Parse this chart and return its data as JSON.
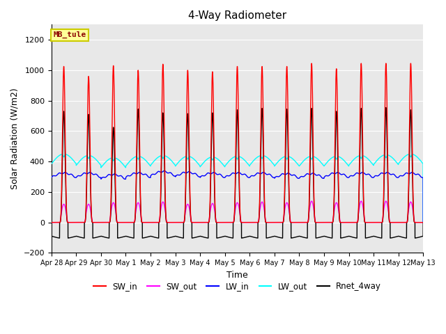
{
  "title": "4-Way Radiometer",
  "xlabel": "Time",
  "ylabel": "Solar Radiation (W/m2)",
  "ylim": [
    -200,
    1300
  ],
  "yticks": [
    -200,
    0,
    200,
    400,
    600,
    800,
    1000,
    1200
  ],
  "station_label": "MB_tule",
  "legend_entries": [
    "SW_in",
    "SW_out",
    "LW_in",
    "LW_out",
    "Rnet_4way"
  ],
  "line_colors": {
    "SW_in": "#FF0000",
    "SW_out": "#FF00FF",
    "LW_in": "#0000FF",
    "LW_out": "#00FFFF",
    "Rnet_4way": "#000000"
  },
  "plot_bg_color": "#E8E8E8",
  "n_days": 15,
  "tick_labels": [
    "Apr 28",
    "Apr 29",
    "Apr 30",
    "May 1",
    "May 2",
    "May 3",
    "May 4",
    "May 5",
    "May 6",
    "May 7",
    "May 8",
    "May 9",
    "May 10",
    "May 11",
    "May 12",
    "May 13"
  ],
  "sw_in_peaks": [
    1025,
    960,
    1030,
    1000,
    1040,
    1000,
    990,
    1025,
    1025,
    1025,
    1045,
    1010,
    1045,
    1045,
    1045
  ],
  "sw_out_peaks": [
    120,
    120,
    130,
    130,
    135,
    120,
    125,
    130,
    135,
    130,
    140,
    130,
    140,
    140,
    135
  ],
  "rnet_peaks": [
    730,
    710,
    625,
    745,
    720,
    715,
    720,
    740,
    750,
    745,
    750,
    730,
    750,
    755,
    740
  ],
  "figsize": [
    6.4,
    4.8
  ],
  "dpi": 100
}
